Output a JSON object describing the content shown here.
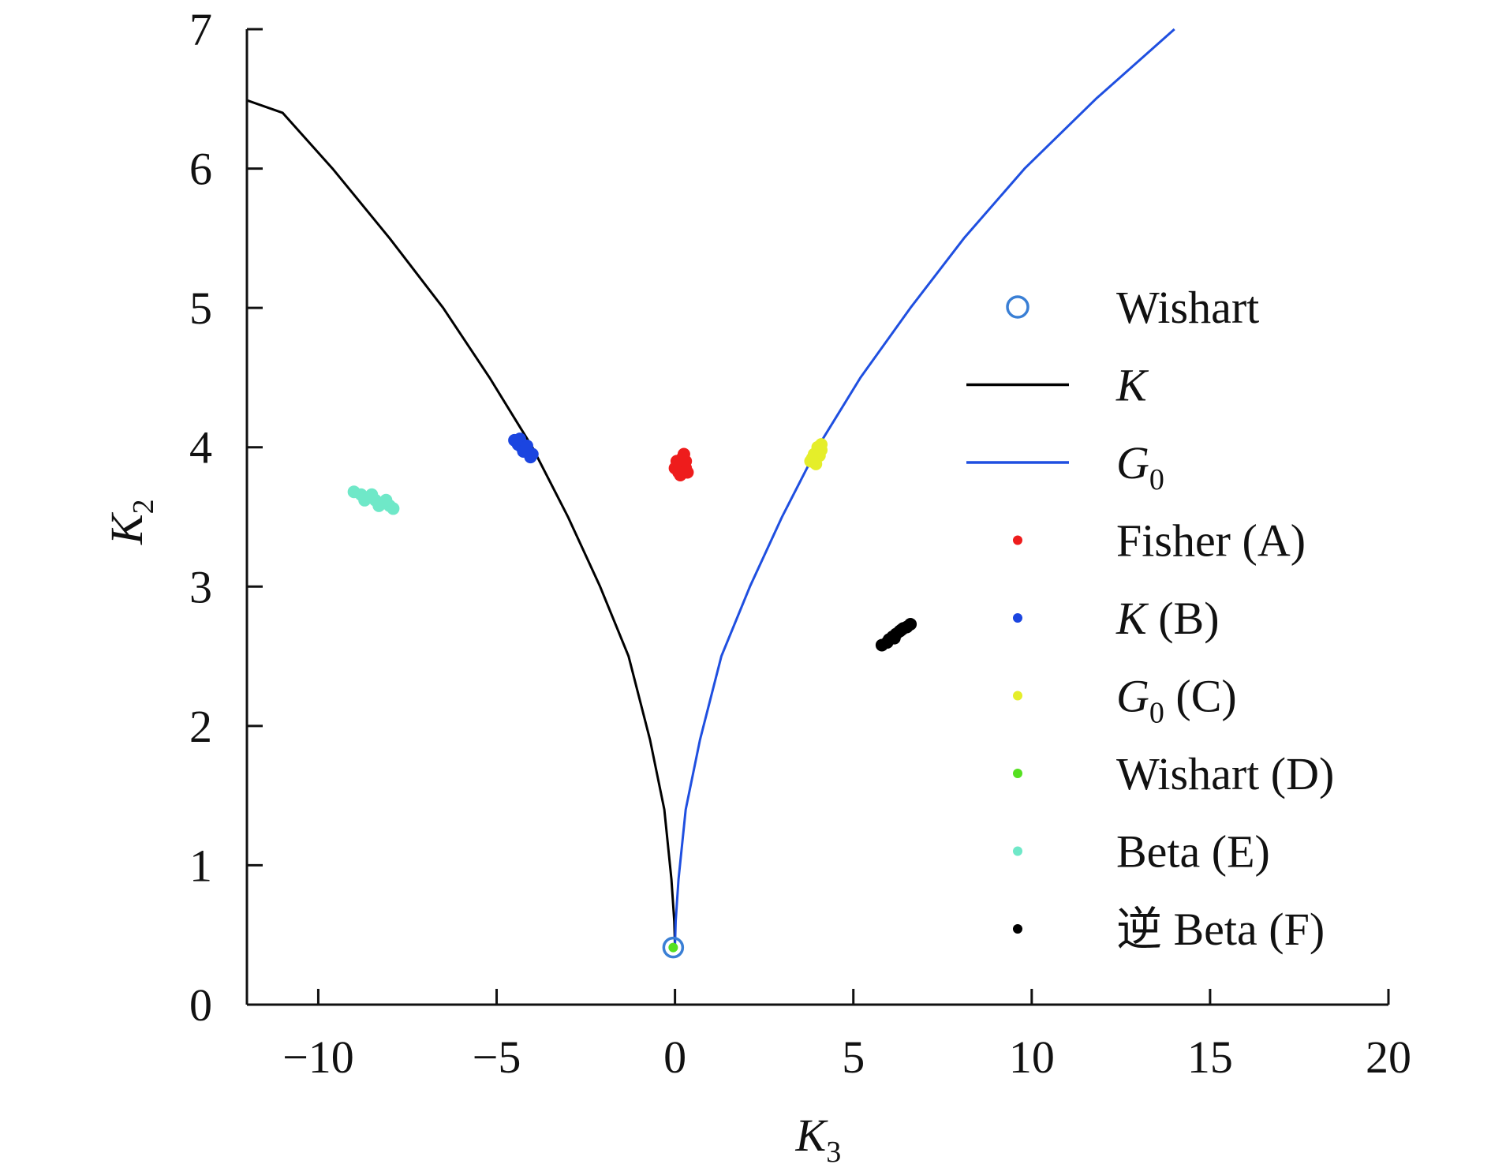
{
  "chart_data": {
    "type": "scatter",
    "xlabel": {
      "main": "K",
      "sub": "3"
    },
    "ylabel": {
      "main": "K",
      "sub": "2"
    },
    "xlim": [
      -12,
      20
    ],
    "ylim": [
      0,
      7
    ],
    "xticks": [
      -10,
      -5,
      0,
      5,
      10,
      15,
      20
    ],
    "xtick_labels": [
      "−10",
      "−5",
      "0",
      "5",
      "10",
      "15",
      "20"
    ],
    "yticks": [
      0,
      1,
      2,
      3,
      4,
      5,
      6,
      7
    ],
    "ytick_labels": [
      "0",
      "1",
      "2",
      "3",
      "4",
      "5",
      "6",
      "7"
    ],
    "grid": false,
    "legend_position": "right",
    "curves": [
      {
        "key": "K",
        "color": "#000000",
        "points": [
          [
            0,
            0.42
          ],
          [
            -0.02,
            0.6
          ],
          [
            -0.1,
            0.9
          ],
          [
            -0.3,
            1.4
          ],
          [
            -0.7,
            1.9
          ],
          [
            -1.3,
            2.5
          ],
          [
            -2.1,
            3.0
          ],
          [
            -3.0,
            3.5
          ],
          [
            -4.0,
            4.0
          ],
          [
            -5.2,
            4.5
          ],
          [
            -6.5,
            5.0
          ],
          [
            -8.0,
            5.5
          ],
          [
            -9.6,
            6.0
          ],
          [
            -11.0,
            6.4
          ],
          [
            -12.0,
            6.49
          ]
        ]
      },
      {
        "key": "G0",
        "color": "#1f4fe0",
        "points": [
          [
            0,
            0.42
          ],
          [
            0.02,
            0.6
          ],
          [
            0.1,
            0.9
          ],
          [
            0.3,
            1.4
          ],
          [
            0.7,
            1.9
          ],
          [
            1.3,
            2.5
          ],
          [
            2.1,
            3.0
          ],
          [
            3.0,
            3.5
          ],
          [
            4.0,
            4.0
          ],
          [
            5.2,
            4.5
          ],
          [
            6.6,
            5.0
          ],
          [
            8.1,
            5.5
          ],
          [
            9.8,
            6.0
          ],
          [
            11.8,
            6.5
          ],
          [
            14.0,
            7.0
          ]
        ]
      }
    ],
    "series": [
      {
        "key": "wishart",
        "marker": "open-circle",
        "color": "#3a7fd5",
        "points": [
          [
            -0.05,
            0.41
          ]
        ]
      },
      {
        "key": "fisher",
        "marker": "dot",
        "color": "#ee1c1c",
        "points": [
          [
            0.0,
            3.85
          ],
          [
            0.1,
            3.88
          ],
          [
            0.2,
            3.83
          ],
          [
            0.3,
            3.9
          ],
          [
            0.25,
            3.95
          ],
          [
            0.15,
            3.8
          ],
          [
            0.35,
            3.82
          ],
          [
            0.05,
            3.9
          ],
          [
            0.2,
            3.92
          ],
          [
            0.3,
            3.85
          ],
          [
            0.1,
            3.82
          ]
        ]
      },
      {
        "key": "k_b",
        "marker": "dot",
        "color": "#1b45e0",
        "points": [
          [
            -4.5,
            4.05
          ],
          [
            -4.4,
            4.02
          ],
          [
            -4.3,
            4.0
          ],
          [
            -4.2,
            3.98
          ],
          [
            -4.1,
            3.96
          ],
          [
            -4.0,
            3.95
          ],
          [
            -4.35,
            4.06
          ],
          [
            -4.25,
            3.97
          ],
          [
            -4.15,
            4.01
          ],
          [
            -4.05,
            3.93
          ]
        ]
      },
      {
        "key": "g0_c",
        "marker": "dot",
        "color": "#e5ee2a",
        "points": [
          [
            3.8,
            3.9
          ],
          [
            3.9,
            3.95
          ],
          [
            4.0,
            4.0
          ],
          [
            4.1,
            3.98
          ],
          [
            3.85,
            3.92
          ],
          [
            4.05,
            3.94
          ],
          [
            3.95,
            3.88
          ],
          [
            4.1,
            4.02
          ]
        ]
      },
      {
        "key": "wishart_d",
        "marker": "dot",
        "color": "#55e020",
        "points": [
          [
            -0.05,
            0.41
          ]
        ]
      },
      {
        "key": "beta_e",
        "marker": "dot",
        "color": "#6fe8c8",
        "points": [
          [
            -9.0,
            3.68
          ],
          [
            -8.8,
            3.66
          ],
          [
            -8.6,
            3.64
          ],
          [
            -8.4,
            3.62
          ],
          [
            -8.2,
            3.6
          ],
          [
            -8.0,
            3.58
          ],
          [
            -7.9,
            3.56
          ],
          [
            -8.7,
            3.62
          ],
          [
            -8.5,
            3.66
          ],
          [
            -8.3,
            3.58
          ],
          [
            -8.1,
            3.62
          ]
        ]
      },
      {
        "key": "inv_beta_f",
        "marker": "dot",
        "color": "#000000",
        "points": [
          [
            5.8,
            2.58
          ],
          [
            6.0,
            2.62
          ],
          [
            6.1,
            2.64
          ],
          [
            6.2,
            2.66
          ],
          [
            6.3,
            2.68
          ],
          [
            6.4,
            2.7
          ],
          [
            6.5,
            2.71
          ],
          [
            6.6,
            2.73
          ],
          [
            5.95,
            2.6
          ],
          [
            6.15,
            2.63
          ],
          [
            6.35,
            2.69
          ]
        ]
      }
    ],
    "legend": [
      {
        "key": "wishart",
        "type": "open-circle",
        "color": "#3a7fd5",
        "label": "Wishart"
      },
      {
        "key": "K",
        "type": "line",
        "color": "#000000",
        "label_main": "K",
        "label_rest": ""
      },
      {
        "key": "G0",
        "type": "line",
        "color": "#1f4fe0",
        "label_main": "G",
        "label_sub": "0",
        "label_rest": ""
      },
      {
        "key": "fisher",
        "type": "dot",
        "color": "#ee1c1c",
        "label": "Fisher (A)"
      },
      {
        "key": "k_b",
        "type": "dot",
        "color": "#1b45e0",
        "label_main": "K",
        "label_rest": " (B)"
      },
      {
        "key": "g0_c",
        "type": "dot",
        "color": "#e5ee2a",
        "label_main": "G",
        "label_sub": "0",
        "label_rest": " (C)"
      },
      {
        "key": "wishart_d",
        "type": "dot",
        "color": "#55e020",
        "label": "Wishart (D)"
      },
      {
        "key": "beta_e",
        "type": "dot",
        "color": "#6fe8c8",
        "label": "Beta (E)"
      },
      {
        "key": "inv_beta_f",
        "type": "dot",
        "color": "#000000",
        "label": "逆 Beta (F)"
      }
    ]
  }
}
